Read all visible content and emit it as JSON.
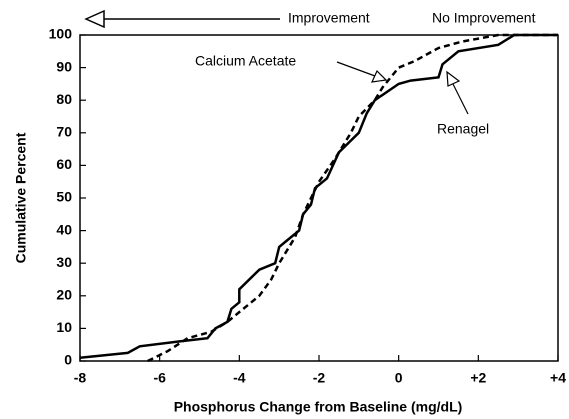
{
  "chart_data": {
    "type": "line",
    "xlabel": "Phosphorus Change from Baseline (mg/dL)",
    "ylabel": "Cumulative Percent",
    "annotations": [
      "Improvement",
      "No Improvement"
    ],
    "xlim": [
      -8,
      4
    ],
    "xticks": [
      -8,
      -6,
      -4,
      -2,
      0,
      {
        "value": 2,
        "label": "+2"
      },
      {
        "value": 4,
        "label": "+4"
      }
    ],
    "ylim": [
      0,
      100
    ],
    "yticks": [
      0,
      10,
      20,
      30,
      40,
      50,
      60,
      70,
      80,
      90,
      100
    ],
    "grid": false,
    "series": [
      {
        "name": "Renagel",
        "color": "#000000",
        "dash": false,
        "x": [
          -8,
          -6.8,
          -6.5,
          -5.5,
          -4.8,
          -4.6,
          -4.3,
          -4.2,
          -4,
          -4,
          -3.5,
          -3.1,
          -3,
          -2.8,
          -2.5,
          -2.4,
          -2.2,
          -2.1,
          -1.8,
          -1.5,
          -1,
          -0.8,
          -0.6,
          0,
          0.3,
          1,
          1.1,
          1.5,
          2.5,
          2.9,
          4
        ],
        "values": [
          1,
          2.5,
          4.5,
          6,
          7,
          10,
          12,
          16,
          18,
          22,
          28,
          30,
          35,
          37,
          40,
          45,
          48,
          53,
          56,
          64,
          70,
          76,
          80,
          85,
          86,
          87,
          91,
          95,
          97,
          100,
          100
        ]
      },
      {
        "name": "Calcium Acetate",
        "color": "#000000",
        "dash": true,
        "x": [
          -6.3,
          -5.8,
          -5.3,
          -4.7,
          -4.3,
          -4,
          -3.5,
          -3.2,
          -3,
          -2.6,
          -2.4,
          -2,
          -1.6,
          -1.2,
          -1,
          -0.6,
          -0.4,
          0,
          0.4,
          1,
          1.6,
          2.5,
          4
        ],
        "values": [
          0,
          3,
          7,
          9,
          12,
          15,
          20,
          25,
          30,
          38,
          45,
          55,
          62,
          70,
          75,
          80,
          84,
          90,
          92,
          96,
          98,
          100,
          100
        ]
      }
    ]
  }
}
